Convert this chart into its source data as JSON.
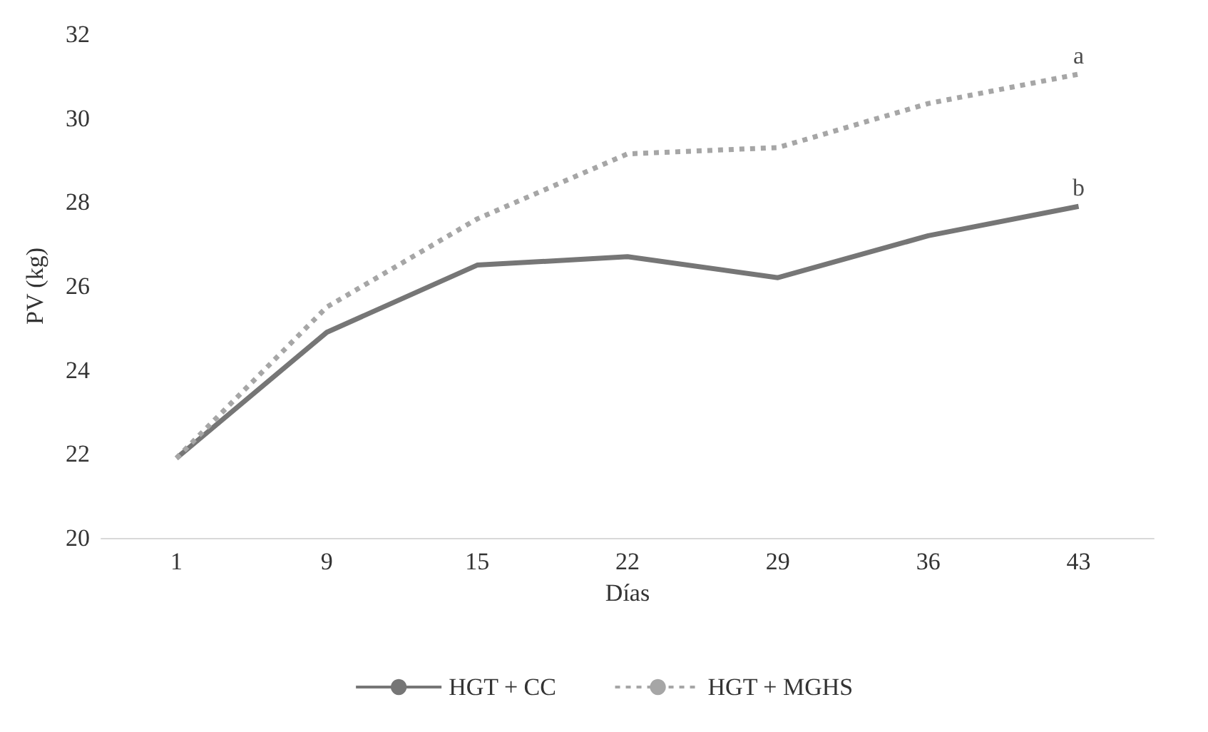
{
  "chart_data": {
    "type": "line",
    "xlabel": "Días",
    "ylabel": "PV (kg)",
    "categories": [
      "1",
      "9",
      "15",
      "22",
      "29",
      "36",
      "43"
    ],
    "series": [
      {
        "name": "HGT + CC",
        "color": "#767676",
        "line_style": "solid",
        "values": [
          21.9,
          24.9,
          26.5,
          26.7,
          26.2,
          27.2,
          27.9
        ]
      },
      {
        "name": "HGT + MGHS",
        "color": "#a6a6a6",
        "line_style": "dotted",
        "values": [
          21.9,
          25.5,
          27.6,
          29.15,
          29.3,
          30.35,
          31.05
        ]
      }
    ],
    "ylim": [
      20,
      32
    ],
    "yticks": [
      20,
      22,
      24,
      26,
      28,
      30,
      32
    ],
    "grid": false,
    "legend": "bottom",
    "marker": "none",
    "annotations": [
      {
        "text": "a",
        "x": "43",
        "y": 31.05
      },
      {
        "text": "b",
        "x": "43",
        "y": 27.9
      }
    ]
  }
}
